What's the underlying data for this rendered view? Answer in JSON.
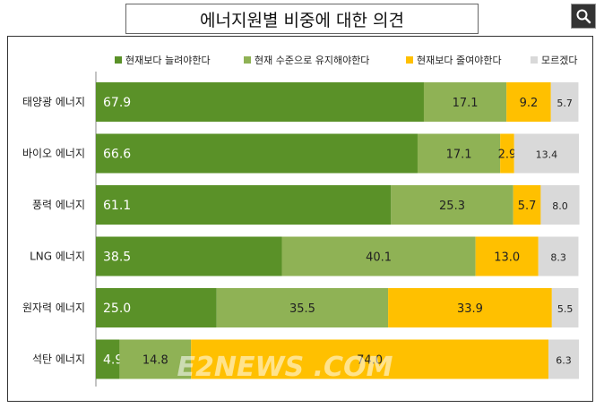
{
  "header": {
    "title": "에너지원별 비중에 대한 의견",
    "search_icon": "magnifier-icon"
  },
  "watermark": "E2NEWS .COM",
  "chart_data": {
    "type": "bar",
    "orientation": "horizontal",
    "stacked": true,
    "percent_stacked": true,
    "xlim": [
      0,
      100
    ],
    "grid": false,
    "legend_position": "top-right",
    "categories": [
      "태양광 에너지",
      "바이오 에너지",
      "풍력 에너지",
      "LNG 에너지",
      "원자력 에너지",
      "석탄 에너지"
    ],
    "series": [
      {
        "name": "현재보다 늘려야한다",
        "color": "#5a9128",
        "label_color": "#ffffff",
        "values": [
          67.9,
          66.6,
          61.1,
          38.5,
          25.0,
          4.9
        ]
      },
      {
        "name": "현재 수준으로 유지해야한다",
        "color": "#8fb255",
        "label_color": "#222222",
        "values": [
          17.1,
          17.1,
          25.3,
          40.1,
          35.5,
          14.8
        ]
      },
      {
        "name": "현재보다 줄여야한다",
        "color": "#ffc000",
        "label_color": "#222222",
        "values": [
          9.2,
          2.9,
          5.7,
          13.0,
          33.9,
          74.0
        ]
      },
      {
        "name": "모르겠다",
        "color": "#d9d9d9",
        "label_color": "#222222",
        "values": [
          5.7,
          13.4,
          8.0,
          8.3,
          5.5,
          6.3
        ]
      }
    ]
  }
}
